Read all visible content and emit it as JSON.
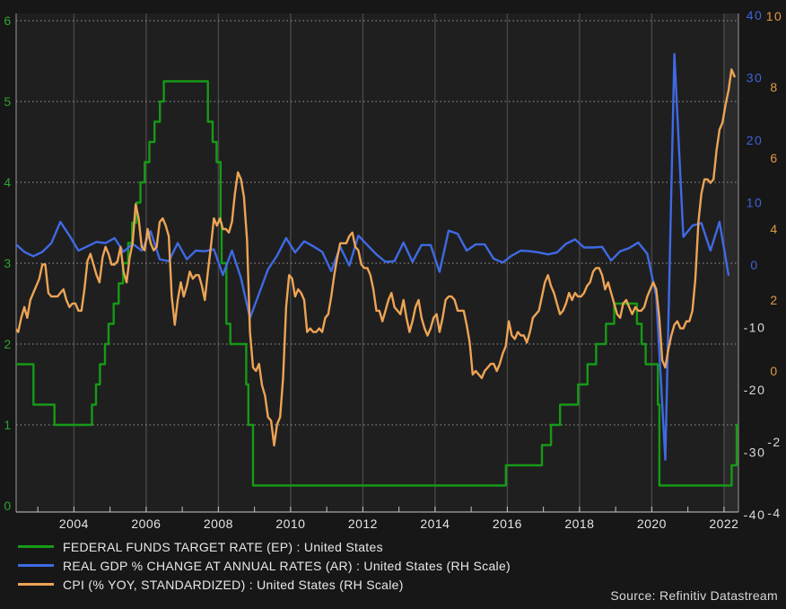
{
  "page": {
    "background": "#171717"
  },
  "footer": {
    "source": "Source: Refinitiv Datastream"
  },
  "chart_data": {
    "type": "line",
    "title": "",
    "x_range": [
      2002.4,
      2022.4
    ],
    "x_tick_years": [
      2004,
      2006,
      2008,
      2010,
      2012,
      2014,
      2016,
      2018,
      2020,
      2022
    ],
    "x_tick_labels": [
      "2004",
      "2006",
      "2008",
      "2010",
      "2012",
      "2014",
      "2016",
      "2018",
      "2020",
      "2022"
    ],
    "x_minor_tick_start": 2003,
    "x_minor_tick_end": 2022,
    "plot_bg": "#1f1f1f",
    "band_color": "#2a2a2a",
    "highlight_band_from_year": 2022,
    "axis_line_color": "#9a9a9a",
    "tick_color": "#c4c4c4",
    "x_label_color": "#e4e4e4",
    "grid": {
      "h_dotted_left_values": [
        1,
        2,
        3,
        4,
        5,
        6
      ],
      "v_solid_years": [
        2004,
        2006,
        2008,
        2010,
        2012,
        2014,
        2016,
        2018,
        2020,
        2022
      ],
      "v_color": "#454545",
      "h_color": "#999999"
    },
    "axes": {
      "left_fed_funds": {
        "side": "left",
        "min": 0,
        "max": 6,
        "ticks": [
          0,
          1,
          2,
          3,
          4,
          5,
          6
        ],
        "label_color": "#2da42d",
        "negative_label_color": "#d9d9d9"
      },
      "right_gdp": {
        "side": "right",
        "min": -40,
        "max": 40,
        "ticks": [
          -40,
          -30,
          -20,
          -10,
          0,
          10,
          20,
          30,
          40
        ],
        "label_color": "#3f63d8",
        "negative_label_color": "#d9d9d9"
      },
      "right_cpi": {
        "side": "right",
        "min": -4,
        "max": 10,
        "ticks": [
          -4,
          -2,
          0,
          2,
          4,
          6,
          8,
          10
        ],
        "label_color": "#e09a45",
        "negative_label_color": "#d9d9d9"
      }
    },
    "series": [
      {
        "name": "federal-funds-target-rate",
        "label": "FEDERAL FUNDS TARGET RATE (EP) : United States",
        "color": "#169a16",
        "axis": "left_fed_funds",
        "render": "step",
        "points": [
          [
            2002.4,
            1.75
          ],
          [
            2002.88,
            1.25
          ],
          [
            2003.46,
            1.0
          ],
          [
            2004.5,
            1.25
          ],
          [
            2004.61,
            1.5
          ],
          [
            2004.72,
            1.75
          ],
          [
            2004.86,
            2.0
          ],
          [
            2004.96,
            2.25
          ],
          [
            2005.1,
            2.5
          ],
          [
            2005.24,
            2.75
          ],
          [
            2005.36,
            3.0
          ],
          [
            2005.5,
            3.25
          ],
          [
            2005.61,
            3.5
          ],
          [
            2005.73,
            3.75
          ],
          [
            2005.84,
            4.0
          ],
          [
            2005.96,
            4.25
          ],
          [
            2006.09,
            4.5
          ],
          [
            2006.23,
            4.75
          ],
          [
            2006.38,
            5.0
          ],
          [
            2006.49,
            5.25
          ],
          [
            2007.71,
            4.75
          ],
          [
            2007.84,
            4.5
          ],
          [
            2007.95,
            4.25
          ],
          [
            2008.06,
            3.5
          ],
          [
            2008.09,
            3.0
          ],
          [
            2008.22,
            2.25
          ],
          [
            2008.33,
            2.0
          ],
          [
            2008.77,
            1.5
          ],
          [
            2008.83,
            1.0
          ],
          [
            2008.96,
            0.25
          ],
          [
            2015.96,
            0.5
          ],
          [
            2016.96,
            0.75
          ],
          [
            2017.21,
            1.0
          ],
          [
            2017.46,
            1.25
          ],
          [
            2017.96,
            1.5
          ],
          [
            2018.22,
            1.75
          ],
          [
            2018.46,
            2.0
          ],
          [
            2018.73,
            2.25
          ],
          [
            2018.96,
            2.5
          ],
          [
            2019.59,
            2.25
          ],
          [
            2019.72,
            2.0
          ],
          [
            2019.83,
            1.75
          ],
          [
            2020.17,
            1.25
          ],
          [
            2020.21,
            0.25
          ],
          [
            2022.21,
            0.5
          ],
          [
            2022.35,
            1.0
          ],
          [
            2022.4,
            1.0
          ]
        ]
      },
      {
        "name": "real-gdp-annual-rate",
        "label": "REAL GDP % CHANGE AT ANNUAL RATES (AR) : United States (RH Scale)",
        "color": "#3f6ae4",
        "axis": "right_gdp",
        "render": "line",
        "freq": "quarterly",
        "start_year": 2002,
        "start_quarter": 2,
        "values": [
          3.4,
          2.1,
          1.4,
          2.1,
          3.5,
          6.9,
          4.7,
          2.3,
          3.0,
          3.7,
          3.5,
          4.3,
          2.1,
          3.4,
          2.3,
          5.4,
          0.9,
          0.6,
          3.5,
          0.9,
          2.3,
          2.2,
          2.5,
          -1.6,
          2.3,
          -2.1,
          -8.5,
          -4.6,
          -0.7,
          1.5,
          4.3,
          2.0,
          3.8,
          3.0,
          2.1,
          -1.0,
          2.9,
          -0.1,
          4.7,
          3.2,
          1.7,
          0.5,
          0.6,
          3.6,
          0.5,
          3.2,
          3.2,
          -1.1,
          5.5,
          5.0,
          2.3,
          3.3,
          3.3,
          1.0,
          0.4,
          1.5,
          2.3,
          2.2,
          2.0,
          1.7,
          2.0,
          3.4,
          4.1,
          2.8,
          2.8,
          2.9,
          0.7,
          2.2,
          2.7,
          3.6,
          1.8,
          -5.1,
          -31.2,
          33.8,
          4.5,
          6.3,
          6.7,
          2.3,
          6.9,
          -1.6
        ]
      },
      {
        "name": "cpi-yoy-standardized",
        "label": "CPI (% YOY, STANDARDIZED) : United States (RH Scale)",
        "color": "#eda455",
        "axis": "right_cpi",
        "render": "line",
        "freq": "monthly",
        "start_year": 2002,
        "start_month": 5,
        "values": [
          1.2,
          1.1,
          1.5,
          1.8,
          1.5,
          2.0,
          2.2,
          2.4,
          2.6,
          3.0,
          3.0,
          2.2,
          2.1,
          2.1,
          2.1,
          2.2,
          2.3,
          2.0,
          1.8,
          1.9,
          1.9,
          1.7,
          1.7,
          2.3,
          3.1,
          3.3,
          3.0,
          2.7,
          2.5,
          3.2,
          3.5,
          3.3,
          3.0,
          3.0,
          3.1,
          3.5,
          2.8,
          2.5,
          3.2,
          3.6,
          4.7,
          4.3,
          3.5,
          3.4,
          4.0,
          3.6,
          3.4,
          3.5,
          4.2,
          4.3,
          4.1,
          3.8,
          2.1,
          1.3,
          2.0,
          2.5,
          2.1,
          2.4,
          2.8,
          2.6,
          2.7,
          2.7,
          2.4,
          2.0,
          2.8,
          3.5,
          4.3,
          4.1,
          4.3,
          4.0,
          4.0,
          3.9,
          4.2,
          5.0,
          5.6,
          5.4,
          4.9,
          3.7,
          1.1,
          0.1,
          0.0,
          0.2,
          -0.4,
          -0.7,
          -1.3,
          -1.4,
          -2.1,
          -1.5,
          -1.3,
          -0.2,
          1.8,
          2.7,
          2.6,
          2.1,
          2.3,
          2.2,
          2.0,
          1.1,
          1.2,
          1.1,
          1.1,
          1.2,
          1.1,
          1.5,
          1.6,
          2.1,
          2.7,
          3.2,
          3.6,
          3.6,
          3.6,
          3.8,
          3.9,
          3.5,
          3.4,
          3.0,
          2.9,
          2.9,
          2.7,
          2.3,
          1.7,
          1.7,
          1.4,
          1.7,
          2.0,
          2.2,
          1.8,
          1.7,
          1.6,
          2.0,
          1.5,
          1.1,
          1.4,
          1.8,
          2.0,
          1.5,
          1.2,
          1.0,
          1.2,
          1.5,
          1.6,
          1.1,
          1.5,
          2.0,
          2.1,
          2.1,
          2.0,
          1.7,
          1.7,
          1.7,
          1.3,
          0.8,
          -0.1,
          0.0,
          -0.1,
          -0.2,
          0.0,
          0.1,
          0.2,
          0.2,
          0.0,
          0.2,
          0.5,
          0.7,
          1.4,
          1.0,
          0.9,
          1.1,
          1.0,
          1.0,
          0.8,
          1.1,
          1.5,
          1.6,
          1.7,
          2.1,
          2.5,
          2.7,
          2.4,
          2.2,
          1.9,
          1.6,
          1.7,
          1.9,
          2.2,
          2.0,
          2.2,
          2.1,
          2.1,
          2.2,
          2.4,
          2.5,
          2.8,
          2.9,
          2.9,
          2.7,
          2.3,
          2.5,
          2.2,
          1.9,
          1.6,
          1.5,
          1.9,
          2.0,
          1.8,
          1.6,
          1.8,
          1.7,
          1.7,
          1.8,
          2.1,
          2.3,
          2.5,
          2.3,
          1.5,
          0.3,
          0.1,
          0.6,
          1.0,
          1.3,
          1.4,
          1.2,
          1.2,
          1.4,
          1.4,
          1.7,
          2.6,
          4.2,
          5.0,
          5.4,
          5.4,
          5.3,
          5.4,
          6.2,
          6.8,
          7.0,
          7.5,
          7.9,
          8.5,
          8.3
        ]
      }
    ]
  }
}
